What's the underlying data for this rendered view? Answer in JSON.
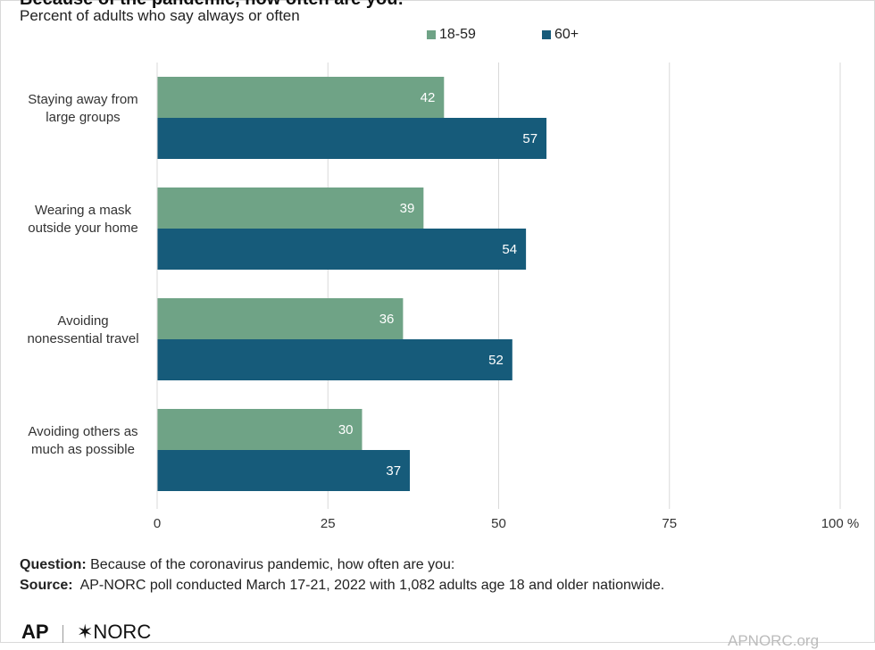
{
  "header": {
    "title": "Because of the pandemic, how often are you:",
    "subtitle": "Percent of adults who say always or often"
  },
  "chart_data": {
    "type": "bar",
    "orientation": "horizontal",
    "categories": [
      [
        "Staying away from",
        "large groups"
      ],
      [
        "Wearing a mask",
        "outside your home"
      ],
      [
        "Avoiding",
        "nonessential travel"
      ],
      [
        "Avoiding others as",
        "much as possible"
      ]
    ],
    "series": [
      {
        "name": "18-59",
        "color": "#6fa386",
        "values": [
          42,
          39,
          36,
          30
        ]
      },
      {
        "name": "60+",
        "color": "#165b7a",
        "values": [
          57,
          54,
          52,
          37
        ]
      }
    ],
    "xlim": [
      0,
      100
    ],
    "xticks": [
      0,
      25,
      50,
      75,
      100
    ],
    "xtick_labels": [
      "0",
      "25",
      "50",
      "75",
      "100 %"
    ],
    "grid": true,
    "legend_position": "top"
  },
  "footer": {
    "question_label": "Question:",
    "question_text": " Because of the coronavirus pandemic, how often are you:",
    "source_label": "Source:",
    "source_text": "  AP-NORC poll conducted March 17-21, 2022 with 1,082 adults age 18 and older nationwide.",
    "logo_ap": "AP",
    "logo_norc": "✶NORC",
    "website": "APNORC.org"
  }
}
